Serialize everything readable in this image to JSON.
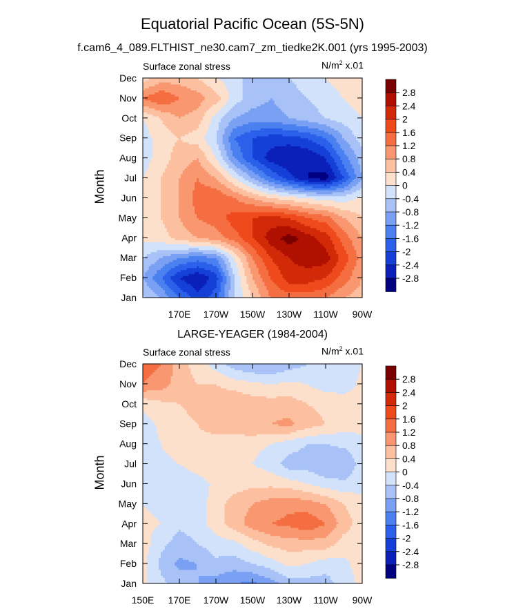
{
  "figure": {
    "title": "Equatorial Pacific Ocean (5S-5N)",
    "subtitle": "f.cam6_4_089.FLTHIST_ne30.cam7_zm_tiedke2K.001 (yrs 1995-2003)",
    "panel2_title": "LARGE-YEAGER (1984-2004)"
  },
  "colors": {
    "levels": [
      -2.8,
      -2.4,
      -2.0,
      -1.6,
      -1.2,
      -0.8,
      -0.4,
      0,
      0.4,
      0.8,
      1.2,
      1.6,
      2.0,
      2.4,
      2.8
    ],
    "fills": [
      "#000080",
      "#0a20b8",
      "#1540d8",
      "#2b60ea",
      "#4a80f0",
      "#7aa0f4",
      "#a8c2f8",
      "#d2e2fb",
      "#fde0cc",
      "#fcc0a0",
      "#f99870",
      "#f56e42",
      "#ee4a1c",
      "#d22a08",
      "#b01000",
      "#7a0000"
    ]
  },
  "chart_data": [
    {
      "type": "contour",
      "name": "panel-model",
      "left_label": "Surface zonal stress",
      "right_label": "N/m",
      "right_label_sup": "2",
      "right_label_suffix": " x.01",
      "ylabel": "Month",
      "xlim": [
        150,
        270
      ],
      "x_ticks": [
        170,
        190,
        210,
        230,
        250,
        270
      ],
      "x_ticklabels": [
        "170E",
        "170W",
        "150W",
        "130W",
        "110W",
        "90W"
      ],
      "y_ticklabels": [
        "Jan",
        "Feb",
        "Mar",
        "Apr",
        "May",
        "Jun",
        "Jul",
        "Aug",
        "Sep",
        "Oct",
        "Nov",
        "Dec"
      ],
      "colorbar_labels": [
        "2.8",
        "2.4",
        "2",
        "1.6",
        "1.2",
        "0.8",
        "0.4",
        "0",
        "-0.4",
        "-0.8",
        "-1.2",
        "-1.6",
        "-2",
        "-2.4",
        "-2.8"
      ],
      "x": [
        150,
        160,
        170,
        180,
        190,
        200,
        210,
        220,
        230,
        240,
        250,
        260,
        270
      ],
      "z": [
        [
          -0.3,
          -0.8,
          -1.6,
          -2.2,
          -1.8,
          -0.4,
          0.4,
          1.2,
          1.4,
          1.4,
          1.2,
          0.8,
          0.6
        ],
        [
          -0.8,
          -1.6,
          -2.4,
          -2.8,
          -2.2,
          -0.4,
          0.8,
          1.6,
          2.2,
          2.2,
          2.0,
          1.4,
          0.8
        ],
        [
          -0.4,
          -0.8,
          -1.2,
          -1.4,
          -1.2,
          0.0,
          1.2,
          2.0,
          2.4,
          2.6,
          2.6,
          1.8,
          1.0
        ],
        [
          0.1,
          0.2,
          0.6,
          0.8,
          1.0,
          1.4,
          2.0,
          2.6,
          3.0,
          2.6,
          2.2,
          1.4,
          0.8
        ],
        [
          0.2,
          0.4,
          0.8,
          1.2,
          1.4,
          1.8,
          2.0,
          2.2,
          2.0,
          1.6,
          1.4,
          0.8,
          0.4
        ],
        [
          0.1,
          0.4,
          0.8,
          1.4,
          1.6,
          1.2,
          0.8,
          0.4,
          0.2,
          0.0,
          -0.2,
          -0.2,
          0.1
        ],
        [
          0.0,
          0.4,
          0.8,
          1.2,
          0.8,
          0.0,
          -0.8,
          -1.6,
          -2.2,
          -2.8,
          -3.0,
          -2.0,
          -0.8
        ],
        [
          -0.2,
          0.2,
          0.6,
          0.8,
          0.0,
          -1.2,
          -2.0,
          -2.6,
          -2.8,
          -2.8,
          -2.4,
          -1.4,
          -0.6
        ],
        [
          -0.2,
          0.2,
          0.4,
          0.2,
          -0.4,
          -1.6,
          -2.0,
          -2.2,
          -2.2,
          -2.0,
          -1.6,
          -0.8,
          -0.2
        ],
        [
          0.0,
          0.4,
          0.8,
          0.6,
          -0.2,
          -0.8,
          -1.0,
          -1.0,
          -0.8,
          -0.6,
          -0.4,
          -0.2,
          0.0
        ],
        [
          1.2,
          1.6,
          1.2,
          1.0,
          0.6,
          -0.2,
          -0.6,
          -0.8,
          -0.6,
          -0.4,
          -0.2,
          0.0,
          0.2
        ],
        [
          0.2,
          0.6,
          0.6,
          0.4,
          0.0,
          -0.2,
          -0.6,
          -0.6,
          -0.4,
          -0.2,
          0.0,
          0.2,
          0.4
        ]
      ]
    },
    {
      "type": "contour",
      "name": "panel-obs",
      "left_label": "Surface zonal stress",
      "right_label": "N/m",
      "right_label_sup": "2",
      "right_label_suffix": " x.01",
      "ylabel": "Month",
      "xlim": [
        150,
        270
      ],
      "x_ticks": [
        150,
        170,
        190,
        210,
        230,
        250,
        270
      ],
      "x_ticklabels": [
        "150E",
        "170E",
        "170W",
        "150W",
        "130W",
        "110W",
        "90W"
      ],
      "y_ticklabels": [
        "Jan",
        "Feb",
        "Mar",
        "Apr",
        "May",
        "Jun",
        "Jul",
        "Aug",
        "Sep",
        "Oct",
        "Nov",
        "Dec"
      ],
      "colorbar_labels": [
        "2.8",
        "2.4",
        "2",
        "1.6",
        "1.2",
        "0.8",
        "0.4",
        "0",
        "-0.4",
        "-0.8",
        "-1.2",
        "-1.6",
        "-2",
        "-2.4",
        "-2.8"
      ],
      "x": [
        150,
        160,
        170,
        180,
        190,
        200,
        210,
        220,
        230,
        240,
        250,
        260,
        270
      ],
      "z": [
        [
          0.1,
          -0.3,
          -0.6,
          -0.8,
          -1.0,
          -1.2,
          -1.3,
          -1.0,
          -0.6,
          -0.6,
          -0.6,
          -0.2,
          0.1
        ],
        [
          0.1,
          -0.5,
          -0.9,
          -0.8,
          -0.5,
          -0.6,
          -0.4,
          -0.2,
          0.1,
          0.0,
          -0.2,
          -0.1,
          0.2
        ],
        [
          0.2,
          -0.3,
          -0.6,
          -0.4,
          -0.2,
          -0.1,
          0.2,
          0.5,
          0.6,
          0.6,
          0.6,
          0.2,
          0.1
        ],
        [
          0.1,
          0.0,
          -0.3,
          -0.2,
          0.2,
          0.6,
          1.0,
          1.2,
          1.3,
          1.5,
          1.2,
          0.6,
          0.2
        ],
        [
          0.0,
          -0.1,
          -0.3,
          -0.2,
          0.2,
          0.6,
          0.8,
          1.0,
          1.1,
          1.0,
          0.8,
          0.4,
          0.1
        ],
        [
          -0.2,
          -0.2,
          -0.3,
          -0.2,
          0.1,
          0.2,
          0.3,
          0.3,
          0.2,
          0.0,
          -0.2,
          -0.3,
          -0.1
        ],
        [
          -0.2,
          -0.1,
          0.0,
          0.2,
          0.4,
          0.2,
          0.0,
          -0.2,
          -0.6,
          -0.6,
          -0.8,
          -0.8,
          -0.2
        ],
        [
          -0.3,
          0.0,
          0.2,
          0.3,
          0.2,
          0.2,
          0.1,
          0.0,
          -0.2,
          -0.4,
          -0.4,
          -0.3,
          -0.1
        ],
        [
          -0.2,
          0.1,
          0.3,
          0.4,
          0.6,
          0.6,
          0.8,
          0.8,
          0.9,
          0.6,
          0.4,
          0.2,
          0.1
        ],
        [
          0.1,
          0.3,
          0.4,
          0.5,
          0.7,
          0.8,
          0.6,
          0.6,
          0.6,
          0.4,
          0.3,
          0.2,
          0.1
        ],
        [
          1.2,
          1.0,
          0.6,
          0.4,
          0.4,
          0.2,
          0.1,
          0.0,
          0.1,
          0.0,
          -0.2,
          -0.2,
          0.1
        ],
        [
          1.4,
          1.2,
          0.6,
          0.2,
          -0.2,
          -0.6,
          -0.8,
          -0.8,
          -0.6,
          -0.4,
          -0.3,
          -0.2,
          0.0
        ]
      ]
    }
  ]
}
